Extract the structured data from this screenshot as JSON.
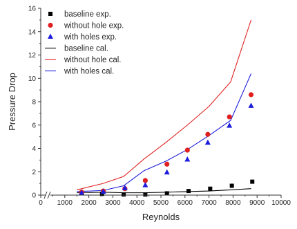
{
  "chart_data": {
    "type": "scatter",
    "title": "",
    "xlabel": "Reynolds",
    "ylabel": "Pressure Drop",
    "xlim": [
      0,
      10000
    ],
    "ylim": [
      0,
      16
    ],
    "xticks": [
      0,
      1000,
      2000,
      3000,
      4000,
      5000,
      6000,
      7000,
      8000,
      9000,
      10000
    ],
    "yticks": [
      0,
      2,
      4,
      6,
      8,
      10,
      12,
      14,
      16
    ],
    "x_tick_labels": [
      "0",
      "1000",
      "2000",
      "3000",
      "4000",
      "5000",
      "6000",
      "7000",
      "8000",
      "9000",
      "10000"
    ],
    "y_tick_labels": [
      "0",
      "2",
      "4",
      "6",
      "8",
      "10",
      "12",
      "14",
      "16"
    ],
    "axis_break_x": true,
    "grid": false,
    "legend_position": "top-left",
    "series": [
      {
        "name": "baseline exp.",
        "kind": "marker",
        "marker": "square",
        "color": "#000000",
        "x": [
          1700,
          2550,
          3450,
          4350,
          5250,
          6150,
          7050,
          7950,
          8800
        ],
        "y": [
          0.2,
          0.1,
          0.05,
          0.05,
          0.15,
          0.35,
          0.55,
          0.8,
          1.15
        ]
      },
      {
        "name": "without hole exp.",
        "kind": "marker",
        "marker": "circle",
        "color": "#e02020",
        "x": [
          1700,
          2600,
          3500,
          4350,
          5250,
          6100,
          6950,
          7850,
          8750
        ],
        "y": [
          0.25,
          0.35,
          0.55,
          1.25,
          2.65,
          3.85,
          5.2,
          6.7,
          8.6
        ]
      },
      {
        "name": "with holes exp.",
        "kind": "marker",
        "marker": "triangle",
        "color": "#1c1cdc",
        "x": [
          1700,
          2600,
          3500,
          4350,
          5250,
          6100,
          6950,
          7850,
          8750
        ],
        "y": [
          0.2,
          0.3,
          0.6,
          0.85,
          1.95,
          3.05,
          4.5,
          5.95,
          7.65
        ]
      },
      {
        "name": "baseline cal.",
        "kind": "line",
        "color": "#000000",
        "x": [
          1500,
          2600,
          3450,
          4300,
          5200,
          6100,
          7000,
          7900,
          8750
        ],
        "y": [
          0.2,
          0.25,
          0.2,
          0.2,
          0.25,
          0.3,
          0.35,
          0.45,
          0.55
        ]
      },
      {
        "name": "without hole cal.",
        "kind": "line",
        "color": "#e02020",
        "x": [
          1500,
          2600,
          3450,
          4300,
          5200,
          6100,
          7000,
          7900,
          8750
        ],
        "y": [
          0.45,
          1.0,
          1.6,
          3.1,
          4.5,
          6.0,
          7.6,
          9.7,
          15.0
        ]
      },
      {
        "name": "with holes cal.",
        "kind": "line",
        "color": "#1c1cdc",
        "x": [
          1500,
          2600,
          3450,
          4300,
          5200,
          6100,
          7000,
          7900,
          8750
        ],
        "y": [
          0.3,
          0.4,
          0.8,
          2.1,
          2.9,
          3.9,
          5.1,
          6.4,
          10.4
        ]
      }
    ]
  }
}
